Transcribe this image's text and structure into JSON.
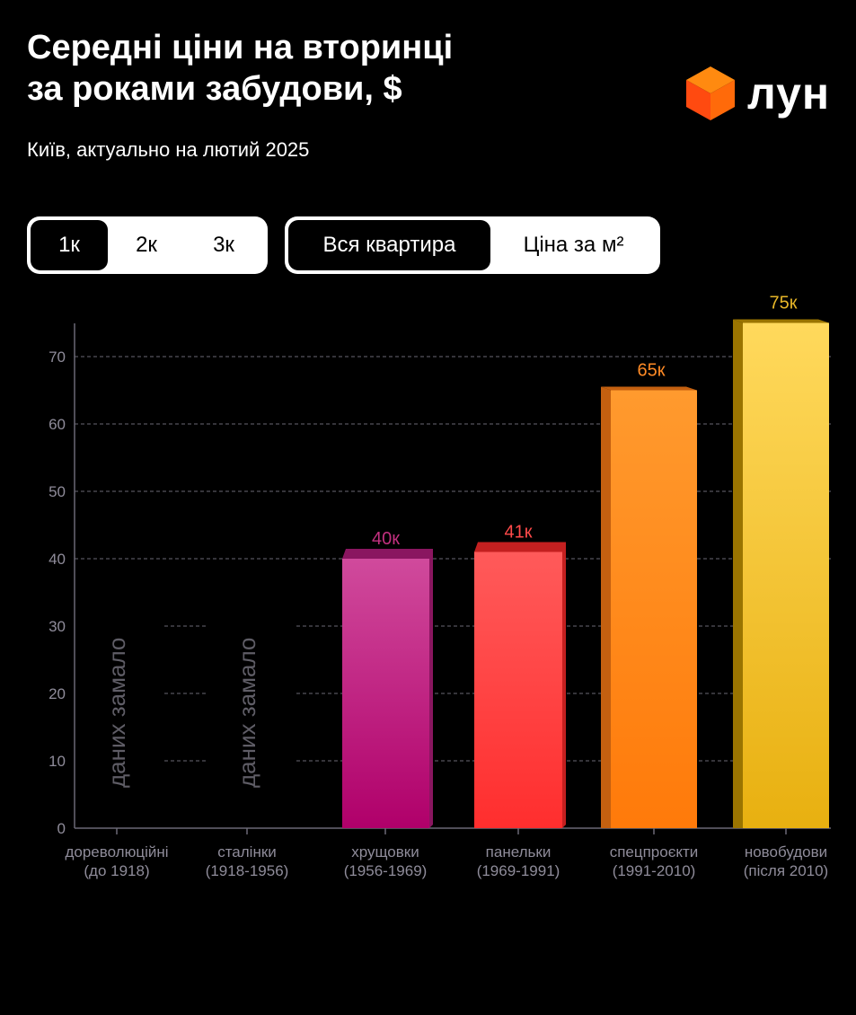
{
  "header": {
    "title_line1": "Середні ціни на вторинці",
    "title_line2": "за роками забудови, $",
    "subtitle": "Київ, актуально на лютий 2025",
    "logo_text": "лун"
  },
  "room_toggle": {
    "options": [
      "1к",
      "2к",
      "3к"
    ],
    "selected": "1к"
  },
  "price_toggle": {
    "options": [
      "Вся квартира",
      "Ціна за м²"
    ],
    "selected": "Вся квартира"
  },
  "chart_data": {
    "type": "bar",
    "title": "Середні ціни на вторинці за роками забудови, $",
    "categories": [
      [
        "дореволюційні",
        "(до 1918)"
      ],
      [
        "сталінки",
        "(1918-1956)"
      ],
      [
        "хрущовки",
        "(1956-1969)"
      ],
      [
        "панельки",
        "(1969-1991)"
      ],
      [
        "спецпроєкти",
        "(1991-2010)"
      ],
      [
        "новобудови",
        "(після 2010)"
      ]
    ],
    "values": [
      null,
      null,
      40,
      41,
      65,
      75
    ],
    "value_labels": [
      "",
      "",
      "40к",
      "41к",
      "65к",
      "75к"
    ],
    "no_data_label": "даних замало",
    "colors": [
      {
        "top": "#d04a9c",
        "bottom": "#b0006a",
        "dark": "#8a1660",
        "label": "#c2307f"
      },
      {
        "top": "#ff5a5a",
        "bottom": "#ff2e2e",
        "dark": "#c42020",
        "label": "#ff4a4a"
      },
      {
        "top": "#ff9a2e",
        "bottom": "#ff7a0a",
        "dark": "#c46010",
        "label": "#ff8a25"
      },
      {
        "top": "#ffd95c",
        "bottom": "#e8b010",
        "dark": "#9a7400",
        "label": "#e7b628"
      }
    ],
    "yticks": [
      0,
      10,
      20,
      30,
      40,
      50,
      60,
      70
    ],
    "ylim": [
      0,
      75
    ],
    "grid": true
  }
}
